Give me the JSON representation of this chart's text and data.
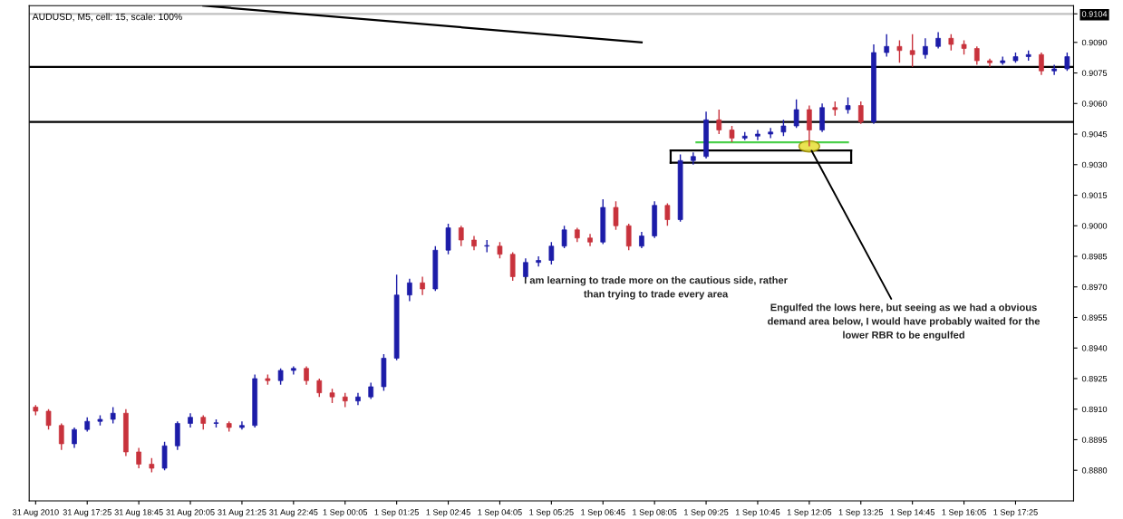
{
  "chart_data": {
    "type": "candlestick",
    "title": "AUDUSD, M5, cell: 15, scale: 100%",
    "x": [
      "2010-08-31T16:05",
      "2010-08-31T16:25",
      "2010-08-31T16:45",
      "2010-08-31T17:05",
      "2010-08-31T17:25",
      "2010-08-31T17:45",
      "2010-08-31T18:05",
      "2010-08-31T18:25",
      "2010-08-31T18:45",
      "2010-08-31T19:05",
      "2010-08-31T19:25",
      "2010-08-31T19:45",
      "2010-08-31T20:05",
      "2010-08-31T20:25",
      "2010-08-31T20:45",
      "2010-08-31T21:05",
      "2010-08-31T21:25",
      "2010-08-31T21:45",
      "2010-08-31T22:05",
      "2010-08-31T22:25",
      "2010-08-31T22:45",
      "2010-08-31T23:05",
      "2010-08-31T23:25",
      "2010-08-31T23:45",
      "2010-09-01T00:05",
      "2010-09-01T00:25",
      "2010-09-01T00:45",
      "2010-09-01T01:05",
      "2010-09-01T01:25",
      "2010-09-01T01:45",
      "2010-09-01T02:05",
      "2010-09-01T02:25",
      "2010-09-01T02:45",
      "2010-09-01T03:05",
      "2010-09-01T03:25",
      "2010-09-01T03:45",
      "2010-09-01T04:05",
      "2010-09-01T04:25",
      "2010-09-01T04:45",
      "2010-09-01T05:05",
      "2010-09-01T05:25",
      "2010-09-01T05:45",
      "2010-09-01T06:05",
      "2010-09-01T06:25",
      "2010-09-01T06:45",
      "2010-09-01T07:05",
      "2010-09-01T07:25",
      "2010-09-01T07:45",
      "2010-09-01T08:05",
      "2010-09-01T08:25",
      "2010-09-01T08:45",
      "2010-09-01T09:05",
      "2010-09-01T09:25",
      "2010-09-01T09:45",
      "2010-09-01T10:05",
      "2010-09-01T10:25",
      "2010-09-01T10:45",
      "2010-09-01T11:05",
      "2010-09-01T11:25",
      "2010-09-01T11:45",
      "2010-09-01T12:05",
      "2010-09-01T12:25",
      "2010-09-01T12:45",
      "2010-09-01T13:05",
      "2010-09-01T13:25",
      "2010-09-01T13:45",
      "2010-09-01T14:05",
      "2010-09-01T14:25",
      "2010-09-01T14:45",
      "2010-09-01T15:05",
      "2010-09-01T15:25",
      "2010-09-01T15:45",
      "2010-09-01T16:05",
      "2010-09-01T16:25",
      "2010-09-01T16:45",
      "2010-09-01T17:05",
      "2010-09-01T17:25",
      "2010-09-01T17:45",
      "2010-09-01T18:05",
      "2010-09-01T18:25",
      "2010-09-01T18:45"
    ],
    "ohlc": [
      [
        0.8911,
        0.8912,
        0.8907,
        0.8909
      ],
      [
        0.8909,
        0.891,
        0.89,
        0.8902
      ],
      [
        0.8902,
        0.8903,
        0.889,
        0.8893
      ],
      [
        0.8893,
        0.8901,
        0.8891,
        0.89
      ],
      [
        0.89,
        0.8906,
        0.8899,
        0.8904
      ],
      [
        0.8904,
        0.8907,
        0.8902,
        0.8905
      ],
      [
        0.8905,
        0.8911,
        0.8903,
        0.8908
      ],
      [
        0.8908,
        0.891,
        0.8887,
        0.8889
      ],
      [
        0.8889,
        0.8891,
        0.8881,
        0.8883
      ],
      [
        0.8883,
        0.8886,
        0.8879,
        0.8881
      ],
      [
        0.8881,
        0.8894,
        0.888,
        0.8892
      ],
      [
        0.8892,
        0.8904,
        0.889,
        0.8903
      ],
      [
        0.8903,
        0.8908,
        0.8901,
        0.8906
      ],
      [
        0.8906,
        0.8907,
        0.89,
        0.8903
      ],
      [
        0.8903,
        0.8905,
        0.8901,
        0.8903
      ],
      [
        0.8903,
        0.8904,
        0.8899,
        0.8901
      ],
      [
        0.8901,
        0.8904,
        0.89,
        0.8902
      ],
      [
        0.8902,
        0.8927,
        0.8901,
        0.8925
      ],
      [
        0.8925,
        0.8927,
        0.8922,
        0.8924
      ],
      [
        0.8924,
        0.893,
        0.8922,
        0.8929
      ],
      [
        0.8929,
        0.8931,
        0.8927,
        0.893
      ],
      [
        0.893,
        0.8931,
        0.8922,
        0.8924
      ],
      [
        0.8924,
        0.8925,
        0.8916,
        0.8918
      ],
      [
        0.8918,
        0.892,
        0.8913,
        0.8916
      ],
      [
        0.8916,
        0.8918,
        0.8911,
        0.8914
      ],
      [
        0.8914,
        0.8918,
        0.8912,
        0.8916
      ],
      [
        0.8916,
        0.8923,
        0.8915,
        0.8921
      ],
      [
        0.8921,
        0.8937,
        0.8919,
        0.8935
      ],
      [
        0.8935,
        0.8976,
        0.8934,
        0.8966
      ],
      [
        0.8966,
        0.8974,
        0.8963,
        0.8972
      ],
      [
        0.8972,
        0.8975,
        0.8966,
        0.8969
      ],
      [
        0.8969,
        0.899,
        0.8968,
        0.8988
      ],
      [
        0.8988,
        0.9001,
        0.8986,
        0.8999
      ],
      [
        0.8999,
        0.9,
        0.899,
        0.8993
      ],
      [
        0.8993,
        0.8995,
        0.8988,
        0.899
      ],
      [
        0.899,
        0.8993,
        0.8987,
        0.899
      ],
      [
        0.899,
        0.8992,
        0.8984,
        0.8986
      ],
      [
        0.8986,
        0.8987,
        0.8973,
        0.8975
      ],
      [
        0.8975,
        0.8984,
        0.8974,
        0.8982
      ],
      [
        0.8982,
        0.8985,
        0.898,
        0.8983
      ],
      [
        0.8983,
        0.8992,
        0.8981,
        0.899
      ],
      [
        0.899,
        0.9,
        0.8989,
        0.8998
      ],
      [
        0.8998,
        0.8999,
        0.8992,
        0.8994
      ],
      [
        0.8994,
        0.8996,
        0.899,
        0.8992
      ],
      [
        0.8992,
        0.9013,
        0.8991,
        0.9009
      ],
      [
        0.9009,
        0.9012,
        0.8998,
        0.9
      ],
      [
        0.9,
        0.9001,
        0.8988,
        0.899
      ],
      [
        0.899,
        0.8997,
        0.8989,
        0.8995
      ],
      [
        0.8995,
        0.9012,
        0.8994,
        0.901
      ],
      [
        0.901,
        0.9011,
        0.9,
        0.9003
      ],
      [
        0.9003,
        0.9035,
        0.9002,
        0.9032
      ],
      [
        0.9032,
        0.9036,
        0.903,
        0.9034
      ],
      [
        0.9034,
        0.9056,
        0.9033,
        0.9052
      ],
      [
        0.9052,
        0.9057,
        0.9045,
        0.9047
      ],
      [
        0.9047,
        0.9049,
        0.9041,
        0.9043
      ],
      [
        0.9043,
        0.9046,
        0.9042,
        0.9044
      ],
      [
        0.9044,
        0.9047,
        0.9042,
        0.9045
      ],
      [
        0.9045,
        0.9048,
        0.9043,
        0.9046
      ],
      [
        0.9046,
        0.9052,
        0.9044,
        0.9049
      ],
      [
        0.9049,
        0.9062,
        0.9048,
        0.9057
      ],
      [
        0.9057,
        0.9059,
        0.9039,
        0.9047
      ],
      [
        0.9047,
        0.906,
        0.9046,
        0.9058
      ],
      [
        0.9058,
        0.9061,
        0.9054,
        0.9057
      ],
      [
        0.9057,
        0.9063,
        0.9055,
        0.9059
      ],
      [
        0.9059,
        0.9061,
        0.905,
        0.9051
      ],
      [
        0.9051,
        0.9089,
        0.905,
        0.9085
      ],
      [
        0.9085,
        0.9094,
        0.9083,
        0.9088
      ],
      [
        0.9088,
        0.9091,
        0.908,
        0.9086
      ],
      [
        0.9086,
        0.9094,
        0.9078,
        0.9084
      ],
      [
        0.9084,
        0.9092,
        0.9082,
        0.9088
      ],
      [
        0.9088,
        0.9095,
        0.9087,
        0.9092
      ],
      [
        0.9092,
        0.9094,
        0.9086,
        0.9089
      ],
      [
        0.9089,
        0.9091,
        0.9084,
        0.9087
      ],
      [
        0.9087,
        0.9088,
        0.9079,
        0.9081
      ],
      [
        0.9081,
        0.9082,
        0.9078,
        0.908
      ],
      [
        0.908,
        0.9083,
        0.9079,
        0.9081
      ],
      [
        0.9081,
        0.9085,
        0.908,
        0.9083
      ],
      [
        0.9083,
        0.9086,
        0.9081,
        0.9084
      ],
      [
        0.9084,
        0.9085,
        0.9074,
        0.9076
      ],
      [
        0.9076,
        0.9079,
        0.9074,
        0.9077
      ],
      [
        0.9077,
        0.9085,
        0.9076,
        0.9083
      ]
    ],
    "colors": [
      "#c8323c",
      "#c8323c",
      "#c8323c",
      "#1c1ca8",
      "#1c1ca8",
      "#1c1ca8",
      "#1c1ca8",
      "#c8323c",
      "#c8323c",
      "#c8323c",
      "#1c1ca8",
      "#1c1ca8",
      "#1c1ca8",
      "#c8323c",
      "#1c1ca8",
      "#c8323c",
      "#1c1ca8",
      "#1c1ca8",
      "#c8323c",
      "#1c1ca8",
      "#1c1ca8",
      "#c8323c",
      "#c8323c",
      "#c8323c",
      "#c8323c",
      "#1c1ca8",
      "#1c1ca8",
      "#1c1ca8",
      "#1c1ca8",
      "#1c1ca8",
      "#c8323c",
      "#1c1ca8",
      "#1c1ca8",
      "#c8323c",
      "#c8323c",
      "#1c1ca8",
      "#c8323c",
      "#c8323c",
      "#1c1ca8",
      "#1c1ca8",
      "#1c1ca8",
      "#1c1ca8",
      "#c8323c",
      "#c8323c",
      "#1c1ca8",
      "#c8323c",
      "#c8323c",
      "#1c1ca8",
      "#1c1ca8",
      "#c8323c",
      "#1c1ca8",
      "#1c1ca8",
      "#1c1ca8",
      "#c8323c",
      "#c8323c",
      "#1c1ca8",
      "#1c1ca8",
      "#1c1ca8",
      "#1c1ca8",
      "#1c1ca8",
      "#c8323c",
      "#1c1ca8",
      "#c8323c",
      "#1c1ca8",
      "#c8323c",
      "#1c1ca8",
      "#1c1ca8",
      "#c8323c",
      "#c8323c",
      "#1c1ca8",
      "#1c1ca8",
      "#c8323c",
      "#c8323c",
      "#c8323c",
      "#c8323c",
      "#1c1ca8",
      "#1c1ca8",
      "#1c1ca8",
      "#c8323c",
      "#1c1ca8",
      "#1c1ca8"
    ],
    "series": [
      {
        "type": "line",
        "color": "#000000",
        "x": [
          "2010-08-31T20:25",
          "2010-09-01T07:45"
        ],
        "values": [
          0.9108,
          0.909
        ]
      },
      {
        "type": "line",
        "color": "#4cd04c",
        "x": [
          "2010-09-01T09:10",
          "2010-09-01T13:05"
        ],
        "values": [
          0.9041,
          0.9041
        ]
      },
      {
        "type": "line",
        "color": "#000000",
        "x": [
          "2010-09-01T08:30",
          "2010-09-01T13:10"
        ],
        "values": [
          0.9037,
          0.9037
        ]
      },
      {
        "type": "line",
        "color": "#000000",
        "x": [
          "2010-09-01T08:30",
          "2010-09-01T13:10"
        ],
        "values": [
          0.9031,
          0.9031
        ]
      }
    ],
    "ref_lines": [
      {
        "axis": "y",
        "value": 0.9078,
        "color": "#000000"
      },
      {
        "axis": "y",
        "value": 0.9051,
        "color": "#000000"
      },
      {
        "axis": "y",
        "value": 0.9104,
        "color": "#c0c0c0"
      }
    ],
    "annotations": [
      "I am learning to trade more on the cautious side, rather\nthan trying to trade every area",
      {
        "text": "Engulfed the lows here, but seeing as we had a obvious\ndemand area below, I would have probably waited for the\nlower RBR to be engulfed",
        "x": "2010-09-01T12:05",
        "y": 0.9039
      }
    ],
    "xlim": [
      "2010-08-31T15:55",
      "2010-09-01T18:55"
    ],
    "xticks": [
      {
        "value": "2010-08-31T16:05",
        "label": "31 Aug 2010"
      },
      {
        "value": "2010-08-31T17:25",
        "label": "31 Aug 17:25"
      },
      {
        "value": "2010-08-31T18:45",
        "label": "31 Aug 18:45"
      },
      {
        "value": "2010-08-31T20:05",
        "label": "31 Aug 20:05"
      },
      {
        "value": "2010-08-31T21:25",
        "label": "31 Aug 21:25"
      },
      {
        "value": "2010-08-31T22:45",
        "label": "31 Aug 22:45"
      },
      {
        "value": "2010-09-01T00:05",
        "label": "1 Sep 00:05"
      },
      {
        "value": "2010-09-01T01:25",
        "label": "1 Sep 01:25"
      },
      {
        "value": "2010-09-01T02:45",
        "label": "1 Sep 02:45"
      },
      {
        "value": "2010-09-01T04:05",
        "label": "1 Sep 04:05"
      },
      {
        "value": "2010-09-01T05:25",
        "label": "1 Sep 05:25"
      },
      {
        "value": "2010-09-01T06:45",
        "label": "1 Sep 06:45"
      },
      {
        "value": "2010-09-01T08:05",
        "label": "1 Sep 08:05"
      },
      {
        "value": "2010-09-01T09:25",
        "label": "1 Sep 09:25"
      },
      {
        "value": "2010-09-01T10:45",
        "label": "1 Sep 10:45"
      },
      {
        "value": "2010-09-01T12:05",
        "label": "1 Sep 12:05"
      },
      {
        "value": "2010-09-01T13:25",
        "label": "1 Sep 13:25"
      },
      {
        "value": "2010-09-01T14:45",
        "label": "1 Sep 14:45"
      },
      {
        "value": "2010-09-01T16:05",
        "label": "1 Sep 16:05"
      },
      {
        "value": "2010-09-01T17:25",
        "label": "1 Sep 17:25"
      }
    ],
    "ylim": [
      0.8865,
      0.9108
    ],
    "yticks": [
      {
        "value": 0.888,
        "label": "0.8880"
      },
      {
        "value": 0.8895,
        "label": "0.8895"
      },
      {
        "value": 0.891,
        "label": "0.8910"
      },
      {
        "value": 0.8925,
        "label": "0.8925"
      },
      {
        "value": 0.894,
        "label": "0.8940"
      },
      {
        "value": 0.8955,
        "label": "0.8955"
      },
      {
        "value": 0.897,
        "label": "0.8970"
      },
      {
        "value": 0.8985,
        "label": "0.8985"
      },
      {
        "value": 0.9,
        "label": "0.9000"
      },
      {
        "value": 0.9015,
        "label": "0.9015"
      },
      {
        "value": 0.903,
        "label": "0.9030"
      },
      {
        "value": 0.9045,
        "label": "0.9045"
      },
      {
        "value": 0.906,
        "label": "0.9060"
      },
      {
        "value": 0.9075,
        "label": "0.9075"
      },
      {
        "value": 0.909,
        "label": "0.9090"
      },
      {
        "value": 0.9104,
        "label": "0.9104"
      }
    ],
    "grid": false
  }
}
